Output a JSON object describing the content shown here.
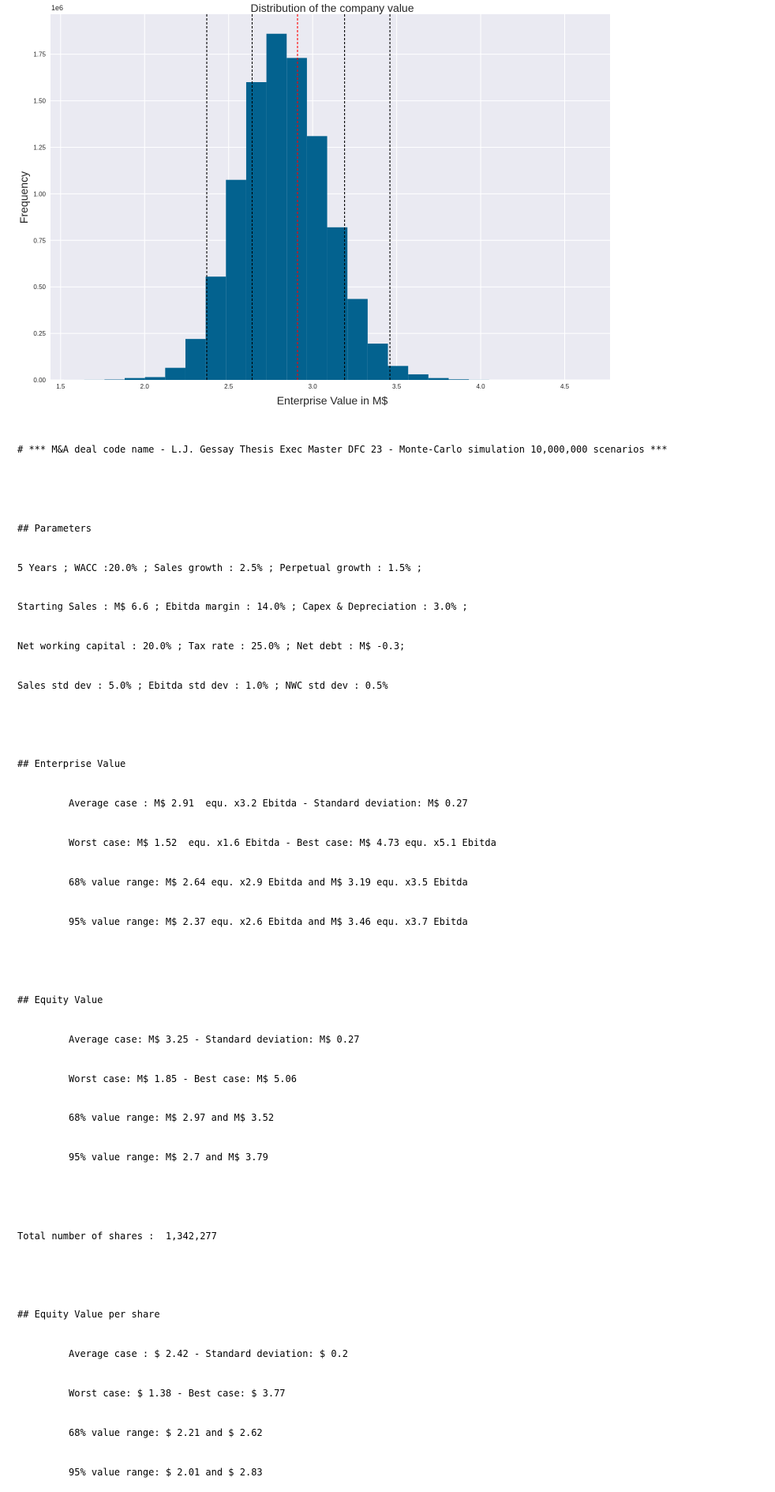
{
  "chart_data": {
    "type": "bar",
    "title": "Distribution of the company value",
    "xlabel": "Enterprise Value in M$",
    "ylabel": "Frequency",
    "y_multiplier_label": "1e6",
    "xlim": [
      1.44,
      4.77
    ],
    "ylim": [
      0,
      1.965
    ],
    "x_ticks": [
      1.5,
      2.0,
      2.5,
      3.0,
      3.5,
      4.0,
      4.5
    ],
    "x_tick_labels": [
      "1.5",
      "2.0",
      "2.5",
      "3.0",
      "3.5",
      "4.0",
      "4.5"
    ],
    "y_ticks": [
      0,
      0.25,
      0.5,
      0.75,
      1.0,
      1.25,
      1.5,
      1.75
    ],
    "y_tick_labels": [
      "0.00",
      "0.25",
      "0.50",
      "0.75",
      "1.00",
      "1.25",
      "1.50",
      "1.75"
    ],
    "bin_edges": [
      1.52,
      1.6405,
      1.761,
      1.8815,
      2.002,
      2.1225,
      2.243,
      2.3635,
      2.484,
      2.6045,
      2.725,
      2.8455,
      2.966,
      3.0865,
      3.207,
      3.3275,
      3.448,
      3.5685,
      3.689,
      3.8095,
      3.93,
      4.0505
    ],
    "values": [
      0.0001,
      0.0005,
      0.002,
      0.01,
      0.015,
      0.065,
      0.22,
      0.555,
      1.075,
      1.6,
      1.86,
      1.73,
      1.31,
      0.82,
      0.435,
      0.195,
      0.075,
      0.03,
      0.01,
      0.003,
      0.0005
    ],
    "bar_color": "#03628f",
    "background_color": "#eaeaf2",
    "grid": true,
    "legend": false,
    "vlines": [
      {
        "x": 2.37,
        "style": "dashed",
        "color": "#000000"
      },
      {
        "x": 2.64,
        "style": "dashed",
        "color": "#000000"
      },
      {
        "x": 2.91,
        "style": "dashed",
        "color": "#ff0000"
      },
      {
        "x": 3.19,
        "style": "dashed",
        "color": "#000000"
      },
      {
        "x": 3.46,
        "style": "dashed",
        "color": "#000000"
      }
    ]
  },
  "report": {
    "header": "# *** M&A deal code name - L.J. Gessay Thesis Exec Master DFC 23 - Monte-Carlo simulation 10,000,000 scenarios ***",
    "parameters": {
      "title": "## Parameters",
      "lines": [
        "5 Years ; WACC :20.0% ; Sales growth : 2.5% ; Perpetual growth : 1.5% ;",
        "Starting Sales : M$ 6.6 ; Ebitda margin : 14.0% ; Capex & Depreciation : 3.0% ;",
        "Net working capital : 20.0% ; Tax rate : 25.0% ; Net debt : M$ -0.3;",
        "Sales std dev : 5.0% ; Ebitda std dev : 1.0% ; NWC std dev : 0.5%"
      ]
    },
    "enterprise_value": {
      "title": "## Enterprise Value",
      "lines": [
        "Average case : M$ 2.91  equ. x3.2 Ebitda - Standard deviation: M$ 0.27",
        "Worst case: M$ 1.52  equ. x1.6 Ebitda - Best case: M$ 4.73 equ. x5.1 Ebitda",
        "68% value range: M$ 2.64 equ. x2.9 Ebitda and M$ 3.19 equ. x3.5 Ebitda",
        "95% value range: M$ 2.37 equ. x2.6 Ebitda and M$ 3.46 equ. x3.7 Ebitda"
      ]
    },
    "equity_value": {
      "title": "## Equity Value",
      "lines": [
        "Average case: M$ 3.25 - Standard deviation: M$ 0.27",
        "Worst case: M$ 1.85 - Best case: M$ 5.06",
        "68% value range: M$ 2.97 and M$ 3.52",
        "95% value range: M$ 2.7 and M$ 3.79"
      ]
    },
    "total_shares": "Total number of shares :  1,342,277",
    "equity_per_share": {
      "title": "## Equity Value per share",
      "lines": [
        "Average case : $ 2.42 - Standard deviation: $ 0.2",
        "Worst case: $ 1.38 - Best case: $ 3.77",
        "68% value range: $ 2.21 and $ 2.62",
        "95% value range: $ 2.01 and $ 2.83"
      ]
    }
  }
}
